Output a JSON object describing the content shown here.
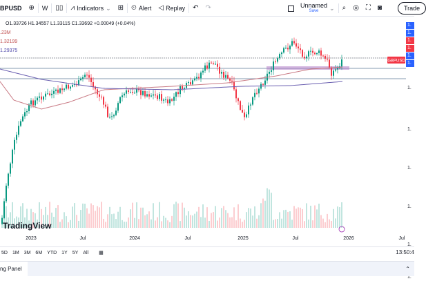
{
  "toolbar": {
    "symbol": "BPUSD",
    "interval": "W",
    "indicators": "Indicators",
    "alert": "Alert",
    "replay": "Replay",
    "layout_name": "Unnamed",
    "layout_status": "Save",
    "trade": "Trade"
  },
  "legend": {
    "ohlc": "O1.33726 H1.34557 L1.33115 C1.33692 +0.00049 (+0.04%)",
    "volume": ".23M",
    "ma1": "1.32199",
    "ma2": "1.29375"
  },
  "chart": {
    "symbol_label": "GBPUSD",
    "price_labels": [
      "1.",
      "1.",
      "1.",
      "1.",
      "1.",
      "1.",
      "1.",
      "1.",
      "1.",
      "1.",
      "1.",
      "1."
    ],
    "colors": {
      "up": "#089981",
      "down": "#f23645",
      "ma_fast": "#c97a84",
      "ma_slow": "#6a5fb0",
      "zone": "#b07cc6"
    }
  },
  "time_axis": [
    "2023",
    "Jul",
    "2024",
    "Jul",
    "2025",
    "Jul",
    "2026",
    "Jul"
  ],
  "ranges": [
    "5D",
    "1M",
    "3M",
    "6M",
    "YTD",
    "1Y",
    "5Y",
    "All"
  ],
  "clock": "13:50:4",
  "logo": "TradingView",
  "panel": {
    "tab": "ng Panel"
  }
}
